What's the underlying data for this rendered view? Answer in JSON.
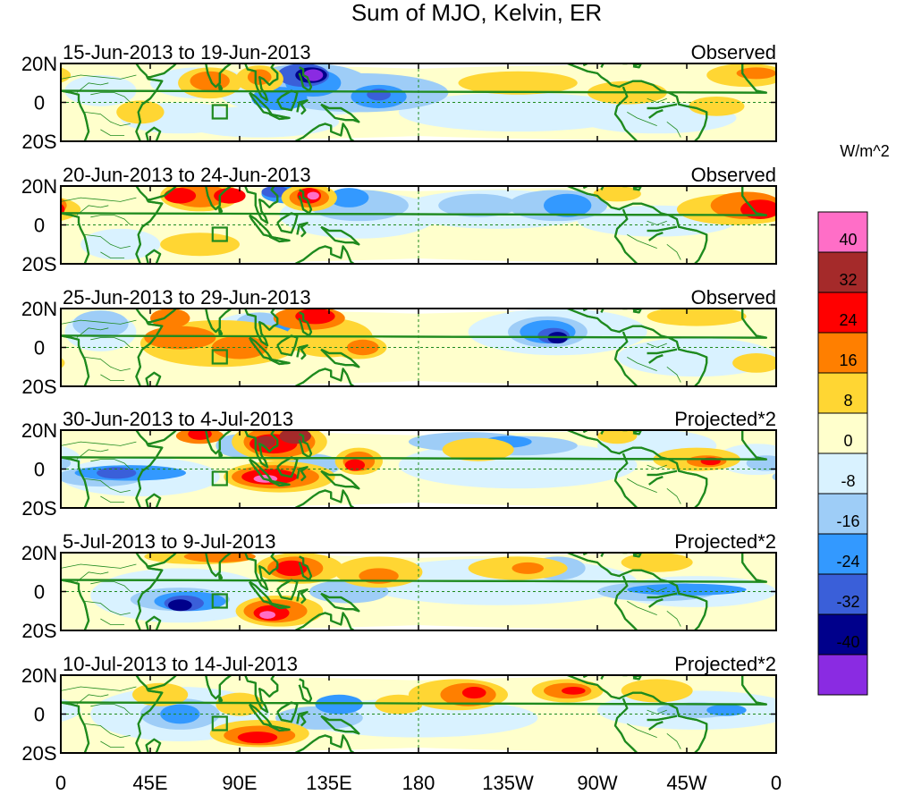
{
  "figure": {
    "title": "Sum of MJO, Kelvin, ER",
    "colorbar": {
      "units": "W/m^2",
      "levels": [
        "40",
        "32",
        "24",
        "16",
        "8",
        "0",
        "-8",
        "-16",
        "-24",
        "-32",
        "-40"
      ],
      "colors": [
        "#ff6ec7",
        "#a52a2a",
        "#ff0000",
        "#ff7f00",
        "#ffd633",
        "#ffffcc",
        "#d9f2ff",
        "#9ecdf7",
        "#3399ff",
        "#3a5fd9",
        "#00008b",
        "#8a2be2"
      ]
    },
    "x_axis": {
      "ticks": [
        "0",
        "45E",
        "90E",
        "135E",
        "180",
        "135W",
        "90W",
        "45W",
        "0"
      ]
    },
    "y_axis": {
      "ticks": [
        "20N",
        "0",
        "20S"
      ]
    },
    "panels": [
      {
        "date_range": "15-Jun-2013 to 19-Jun-2013",
        "type": "Observed"
      },
      {
        "date_range": "20-Jun-2013 to 24-Jun-2013",
        "type": "Observed"
      },
      {
        "date_range": "25-Jun-2013 to 29-Jun-2013",
        "type": "Observed"
      },
      {
        "date_range": "30-Jun-2013 to 4-Jul-2013",
        "type": "Projected*2"
      },
      {
        "date_range": "5-Jul-2013 to 9-Jul-2013",
        "type": "Projected*2"
      },
      {
        "date_range": "10-Jul-2013 to 14-Jul-2013",
        "type": "Projected*2"
      }
    ]
  },
  "palette": {
    "coast": "#1e8a1e",
    "box": "#1e8a1e",
    "background": "#ffffff"
  }
}
